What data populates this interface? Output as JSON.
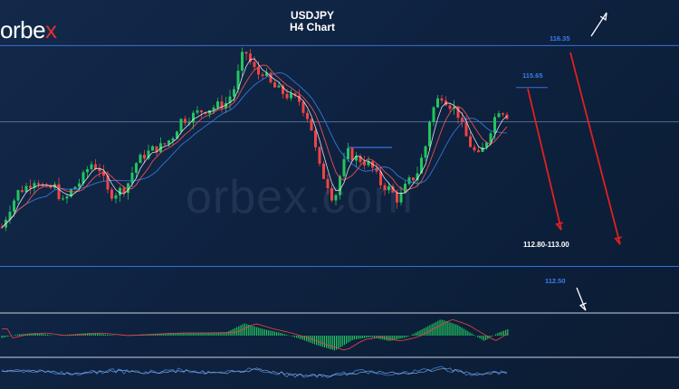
{
  "brand": {
    "logo_main": "orbe",
    "logo_accent": "x",
    "watermark": "orbex.com"
  },
  "chart_data": {
    "type": "candlestick",
    "title": "USDJPY",
    "subtitle": "H4 Chart",
    "symbol": "USDJPY",
    "timeframe": "H4",
    "ylim": [
      112.35,
      116.45
    ],
    "grid": false,
    "levels": [
      {
        "label": "116.35",
        "value": 116.35,
        "color": "#3a6fd8"
      },
      {
        "label": "115.65",
        "value": 115.65,
        "color": "#3a6fd8"
      },
      {
        "label": "",
        "value": 115.02,
        "color": "#6d8fb8"
      },
      {
        "label": "112.50",
        "value": 112.5,
        "color": "#3a6fd8"
      }
    ],
    "target_zone": {
      "label": "112.80-113.00",
      "low": 112.8,
      "high": 113.0
    },
    "price_path": [
      [
        0,
        113.1
      ],
      [
        10,
        113.5
      ],
      [
        20,
        113.8
      ],
      [
        30,
        113.9
      ],
      [
        40,
        114.05
      ],
      [
        50,
        113.8
      ],
      [
        60,
        113.9
      ],
      [
        70,
        113.6
      ],
      [
        80,
        113.85
      ],
      [
        90,
        114.0
      ],
      [
        100,
        114.3
      ],
      [
        110,
        114.2
      ],
      [
        120,
        113.75
      ],
      [
        130,
        113.8
      ],
      [
        140,
        113.9
      ],
      [
        150,
        114.3
      ],
      [
        160,
        114.45
      ],
      [
        170,
        114.55
      ],
      [
        180,
        114.6
      ],
      [
        190,
        114.75
      ],
      [
        200,
        115.05
      ],
      [
        210,
        115.1
      ],
      [
        220,
        115.2
      ],
      [
        230,
        115.25
      ],
      [
        240,
        115.3
      ],
      [
        250,
        115.35
      ],
      [
        260,
        115.65
      ],
      [
        265,
        116.0
      ],
      [
        270,
        116.3
      ],
      [
        275,
        116.1
      ],
      [
        280,
        115.95
      ],
      [
        285,
        115.85
      ],
      [
        290,
        115.9
      ],
      [
        300,
        115.65
      ],
      [
        310,
        115.55
      ],
      [
        320,
        115.45
      ],
      [
        330,
        115.4
      ],
      [
        340,
        115.1
      ],
      [
        345,
        114.85
      ],
      [
        350,
        114.4
      ],
      [
        355,
        114.1
      ],
      [
        360,
        114.05
      ],
      [
        365,
        113.75
      ],
      [
        370,
        113.7
      ],
      [
        375,
        114.05
      ],
      [
        380,
        114.3
      ],
      [
        385,
        114.5
      ],
      [
        390,
        114.4
      ],
      [
        400,
        114.35
      ],
      [
        410,
        114.25
      ],
      [
        420,
        113.95
      ],
      [
        430,
        113.85
      ],
      [
        440,
        113.65
      ],
      [
        450,
        113.95
      ],
      [
        460,
        114.1
      ],
      [
        470,
        114.6
      ],
      [
        475,
        115.1
      ],
      [
        480,
        115.3
      ],
      [
        487,
        115.5
      ],
      [
        495,
        115.35
      ],
      [
        505,
        115.2
      ],
      [
        512,
        114.85
      ],
      [
        520,
        114.6
      ],
      [
        528,
        114.4
      ],
      [
        535,
        114.6
      ],
      [
        542,
        114.9
      ],
      [
        550,
        115.25
      ],
      [
        557,
        115.2
      ],
      [
        562,
        115.1
      ]
    ],
    "momentum": [
      [
        0,
        -0.1
      ],
      [
        20,
        0.05
      ],
      [
        40,
        0.1
      ],
      [
        60,
        0.0
      ],
      [
        80,
        0.05
      ],
      [
        100,
        0.1
      ],
      [
        130,
        0.0
      ],
      [
        160,
        0.05
      ],
      [
        190,
        0.1
      ],
      [
        220,
        0.1
      ],
      [
        250,
        0.12
      ],
      [
        270,
        0.45
      ],
      [
        290,
        0.25
      ],
      [
        310,
        0.1
      ],
      [
        330,
        -0.1
      ],
      [
        350,
        -0.35
      ],
      [
        370,
        -0.55
      ],
      [
        390,
        -0.15
      ],
      [
        410,
        -0.05
      ],
      [
        430,
        -0.2
      ],
      [
        450,
        -0.05
      ],
      [
        470,
        0.3
      ],
      [
        487,
        0.6
      ],
      [
        505,
        0.4
      ],
      [
        520,
        0.1
      ],
      [
        535,
        -0.2
      ],
      [
        550,
        0.1
      ],
      [
        562,
        0.25
      ]
    ],
    "oscillator": [
      [
        0,
        0.2
      ],
      [
        40,
        0.1
      ],
      [
        80,
        -0.1
      ],
      [
        120,
        0.15
      ],
      [
        160,
        0.0
      ],
      [
        200,
        0.2
      ],
      [
        240,
        -0.1
      ],
      [
        280,
        0.3
      ],
      [
        320,
        -0.2
      ],
      [
        360,
        -0.3
      ],
      [
        400,
        0.1
      ],
      [
        440,
        -0.1
      ],
      [
        487,
        0.4
      ],
      [
        520,
        -0.2
      ],
      [
        562,
        0.1
      ]
    ],
    "annotations": [
      {
        "type": "arrow",
        "direction": "up",
        "color": "white"
      },
      {
        "type": "arrow",
        "direction": "down",
        "color": "red"
      },
      {
        "type": "arrow",
        "direction": "down",
        "color": "red"
      },
      {
        "type": "arrow",
        "direction": "down",
        "color": "white"
      }
    ],
    "colors": {
      "bullish": "#22c55e",
      "bearish": "#ef4444",
      "level": "#3a6fd8",
      "ma_fast": "#ffffff",
      "ma_mid": "#ff5555",
      "ma_slow": "#3a7ee8"
    }
  }
}
